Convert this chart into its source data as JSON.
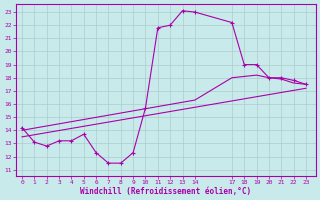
{
  "xlabel": "Windchill (Refroidissement éolien,°C)",
  "bg_color": "#c8eaea",
  "line_color": "#aa00aa",
  "grid_color": "#aacccc",
  "xlim": [
    -0.5,
    23.8
  ],
  "ylim": [
    10.5,
    23.6
  ],
  "xticks": [
    0,
    1,
    2,
    3,
    4,
    5,
    6,
    7,
    8,
    9,
    10,
    11,
    12,
    13,
    14,
    17,
    18,
    19,
    20,
    21,
    22,
    23
  ],
  "yticks": [
    11,
    12,
    13,
    14,
    15,
    16,
    17,
    18,
    19,
    20,
    21,
    22,
    23
  ],
  "curve1_x": [
    0,
    1,
    2,
    3,
    4,
    5,
    6,
    7,
    8,
    9,
    10,
    11,
    12,
    13,
    14,
    17,
    18,
    19,
    20,
    21,
    22,
    23
  ],
  "curve1_y": [
    14.2,
    13.1,
    12.8,
    13.2,
    13.2,
    13.7,
    12.3,
    11.5,
    11.5,
    12.3,
    15.7,
    21.8,
    22.0,
    23.1,
    23.0,
    22.2,
    19.0,
    19.0,
    18.0,
    18.0,
    17.8,
    17.5
  ],
  "curve2_x": [
    0,
    14,
    17,
    19,
    20,
    21,
    22,
    23
  ],
  "curve2_y": [
    14.0,
    16.3,
    18.0,
    18.2,
    18.0,
    17.9,
    17.6,
    17.5
  ],
  "curve3_x": [
    0,
    23
  ],
  "curve3_y": [
    13.5,
    17.2
  ]
}
